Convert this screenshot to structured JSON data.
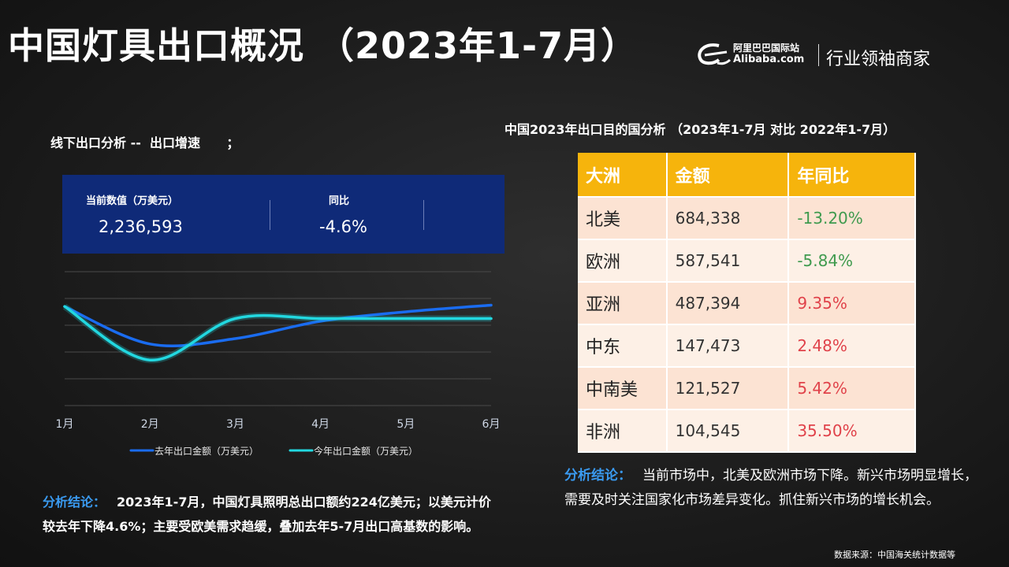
{
  "header": {
    "title": "中国灯具出口概况 （2023年1-7月）",
    "logo": {
      "cn": "阿里巴巴国际站",
      "en": "Alibaba.com",
      "slogan": "行业领袖商家"
    }
  },
  "left_panel": {
    "subtitle": "线下出口分析 --  出口增速      ；",
    "kpi": {
      "current_label": "当前数值（万美元）",
      "current_value": "2,236,593",
      "yoy_label": "同比",
      "yoy_value": "-4.6%"
    },
    "conclusion_label": "分析结论：",
    "conclusion_text": "2023年1-7月，中国灯具照明总出口额约224亿美元；以美元计价较去年下降4.6%；主要受欧美需求趋缓，叠加去年5-7月出口高基数的影响。"
  },
  "right_panel": {
    "subtitle": "中国2023年出口目的国分析 （2023年1-7月 对比 2022年1-7月）",
    "table": {
      "headers": [
        "大洲",
        "金额",
        "年同比"
      ],
      "rows": [
        [
          "北美",
          "684,338",
          "-13.20%"
        ],
        [
          "欧洲",
          "587,541",
          "-5.84%"
        ],
        [
          "亚洲",
          "487,394",
          "9.35%"
        ],
        [
          "中东",
          "147,473",
          "2.48%"
        ],
        [
          "中南美",
          "121,527",
          "5.42%"
        ],
        [
          "非洲",
          "104,545",
          "35.50%"
        ]
      ],
      "negative_color": "#3f9a4e",
      "positive_color": "#e0424a"
    },
    "conclusion_label": "分析结论：",
    "conclusion_text": "当前市场中，北美及欧洲市场下降。新兴市场明显增长，需要及时关注国家化市场差异变化。抓住新兴市场的增长机会。"
  },
  "source": "数据来源：中国海关统计数据等",
  "chart_data": {
    "type": "line",
    "categories": [
      "1月",
      "2月",
      "3月",
      "4月",
      "5月",
      "6月"
    ],
    "ylim": [
      0,
      100
    ],
    "grid": true,
    "legend_position": "bottom",
    "series": [
      {
        "name": "去年出口金额（万美元）",
        "values": [
          74,
          46,
          50,
          63,
          70,
          75
        ],
        "color": "#1a6cf0"
      },
      {
        "name": "今年出口金额（万美元）",
        "values": [
          74,
          34,
          65,
          65,
          65,
          65
        ],
        "color": "#22d8e0"
      }
    ]
  }
}
